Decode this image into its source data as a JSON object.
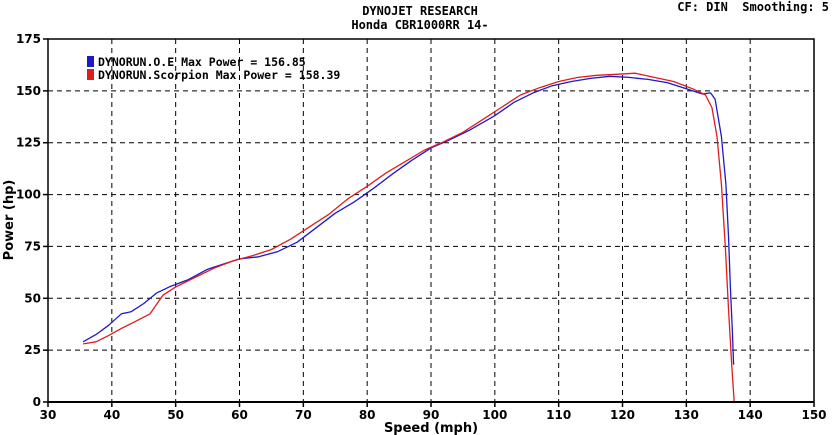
{
  "header": {
    "company": "DYNOJET RESEARCH",
    "vehicle": "Honda CBR1000RR 14-",
    "settings": "CF: DIN  Smoothing: 5"
  },
  "chart_data": {
    "type": "line",
    "xlabel": "Speed (mph)",
    "ylabel": "Power (hp)",
    "xlim": [
      30,
      150
    ],
    "ylim": [
      0,
      175
    ],
    "xticks": [
      30,
      40,
      50,
      60,
      70,
      80,
      90,
      100,
      110,
      120,
      130,
      140,
      150
    ],
    "yticks": [
      0,
      25,
      50,
      75,
      100,
      125,
      150,
      175
    ],
    "grid": true,
    "legend_position": "top-left",
    "series": [
      {
        "name": "DYNORUN.O.E",
        "legend": "DYNORUN.O.E Max Power = 156.85",
        "color": "#1a1acc",
        "points": [
          [
            35.5,
            29
          ],
          [
            37.5,
            32.5
          ],
          [
            39.5,
            37
          ],
          [
            41.5,
            42.5
          ],
          [
            43,
            43.5
          ],
          [
            45,
            47.5
          ],
          [
            47,
            52.5
          ],
          [
            49,
            55.5
          ],
          [
            52,
            59
          ],
          [
            55,
            64
          ],
          [
            58,
            67
          ],
          [
            60,
            69
          ],
          [
            63,
            70
          ],
          [
            66,
            72.5
          ],
          [
            69,
            77
          ],
          [
            72,
            84
          ],
          [
            75,
            91
          ],
          [
            78,
            96.5
          ],
          [
            81,
            103
          ],
          [
            84,
            110
          ],
          [
            87,
            116.5
          ],
          [
            90,
            122.5
          ],
          [
            93,
            126.5
          ],
          [
            96,
            131
          ],
          [
            100,
            138
          ],
          [
            103,
            144.5
          ],
          [
            106,
            149
          ],
          [
            109,
            152.5
          ],
          [
            112,
            154.5
          ],
          [
            115,
            156
          ],
          [
            118,
            157
          ],
          [
            121,
            156.5
          ],
          [
            124,
            155.5
          ],
          [
            127,
            154
          ],
          [
            130,
            151
          ],
          [
            132.5,
            148.5
          ],
          [
            133.8,
            149
          ],
          [
            134.5,
            146
          ],
          [
            135.5,
            128
          ],
          [
            136.2,
            105
          ],
          [
            136.6,
            80
          ],
          [
            136.9,
            55
          ],
          [
            137.2,
            35
          ],
          [
            137.4,
            18
          ]
        ]
      },
      {
        "name": "DYNORUN.Scorpion",
        "legend": "DYNORUN.Scorpion Max Power = 158.39",
        "color": "#e01c1c",
        "points": [
          [
            35.5,
            28
          ],
          [
            37.5,
            29
          ],
          [
            39.5,
            32
          ],
          [
            41.5,
            35.5
          ],
          [
            43.5,
            38.5
          ],
          [
            46,
            42.5
          ],
          [
            48,
            51.5
          ],
          [
            50,
            55.5
          ],
          [
            53,
            60
          ],
          [
            56,
            64.5
          ],
          [
            59,
            68
          ],
          [
            62,
            70.5
          ],
          [
            65,
            73.5
          ],
          [
            68,
            78.5
          ],
          [
            71,
            84.5
          ],
          [
            74,
            90.5
          ],
          [
            77,
            98
          ],
          [
            80,
            104
          ],
          [
            83,
            110.5
          ],
          [
            86,
            116
          ],
          [
            89,
            121.5
          ],
          [
            92,
            125.5
          ],
          [
            95,
            130
          ],
          [
            98,
            136
          ],
          [
            101,
            142
          ],
          [
            104,
            148
          ],
          [
            107,
            151.5
          ],
          [
            110,
            154.5
          ],
          [
            113,
            156.5
          ],
          [
            116,
            157.5
          ],
          [
            119,
            158
          ],
          [
            122,
            158.5
          ],
          [
            125,
            156.5
          ],
          [
            128,
            154.5
          ],
          [
            131,
            151
          ],
          [
            133,
            148
          ],
          [
            134,
            142
          ],
          [
            134.8,
            128
          ],
          [
            135.5,
            105
          ],
          [
            136.1,
            75
          ],
          [
            136.6,
            45
          ],
          [
            137.1,
            18
          ],
          [
            137.5,
            0
          ]
        ]
      }
    ]
  }
}
